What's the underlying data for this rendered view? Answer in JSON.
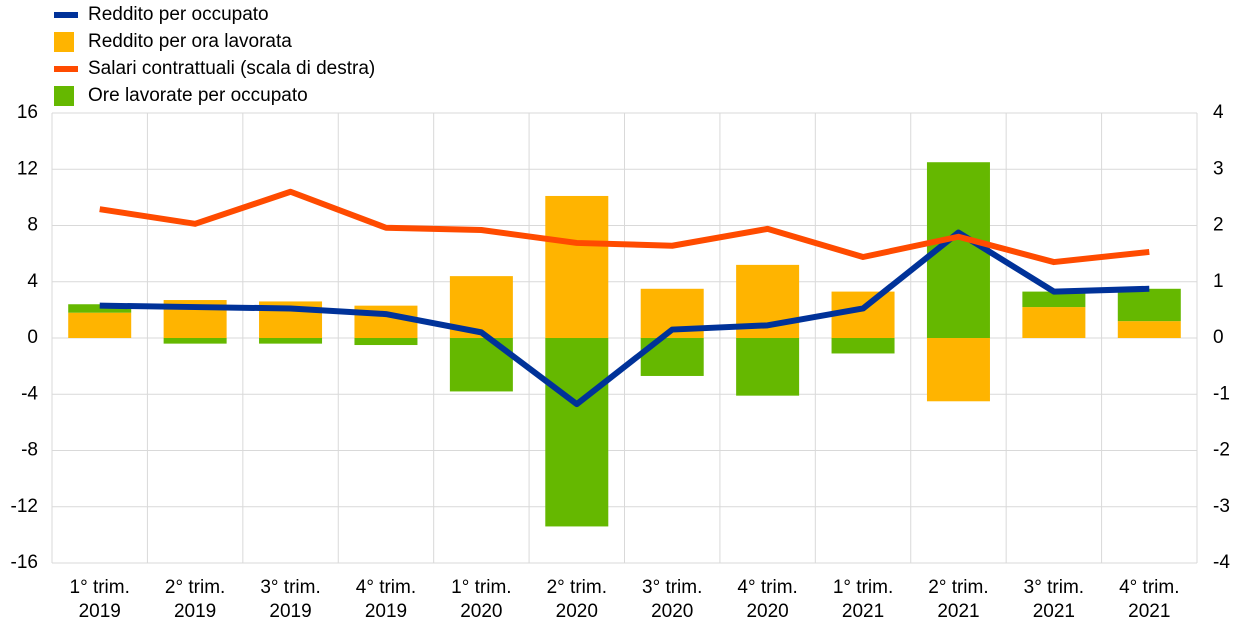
{
  "chart_data": {
    "type": "bar-line",
    "categories": [
      "1° trim. 2019",
      "2° trim. 2019",
      "3° trim. 2019",
      "4° trim. 2019",
      "1° trim. 2020",
      "2° trim. 2020",
      "3° trim. 2020",
      "4° trim. 2020",
      "1° trim. 2021",
      "2° trim. 2021",
      "3° trim. 2021",
      "4° trim. 2021"
    ],
    "series": [
      {
        "name": "Reddito per occupato",
        "kind": "line",
        "color": "#003299",
        "values": [
          2.3,
          2.2,
          2.1,
          1.7,
          0.4,
          -4.7,
          0.6,
          0.9,
          2.1,
          7.5,
          3.3,
          3.5
        ]
      },
      {
        "name": "Reddito per ora lavorata",
        "kind": "bar",
        "color": "#ffb400",
        "values": [
          1.8,
          2.7,
          2.6,
          2.3,
          4.4,
          10.1,
          3.5,
          5.2,
          3.3,
          -4.5,
          2.2,
          1.2
        ]
      },
      {
        "name": "Salari contrattuali (scala di destra)",
        "kind": "line",
        "axis": "y2",
        "color": "#ff4b00",
        "values": [
          2.29,
          2.03,
          2.6,
          1.96,
          1.92,
          1.69,
          1.64,
          1.94,
          1.44,
          1.8,
          1.35,
          1.53
        ]
      },
      {
        "name": "Ore lavorate per occupato",
        "kind": "bar",
        "color": "#65b800",
        "values": [
          0.6,
          -0.4,
          -0.4,
          -0.5,
          -3.8,
          -13.4,
          -2.7,
          -4.1,
          -1.1,
          12.5,
          1.1,
          2.3
        ]
      }
    ],
    "ylim": [
      -16,
      16
    ],
    "yticks": [
      -16,
      -12,
      -8,
      -4,
      0,
      4,
      8,
      12,
      16
    ],
    "y2lim": [
      -4,
      4
    ],
    "y2ticks": [
      -4,
      -3,
      -2,
      -1,
      0,
      1,
      2,
      3,
      4
    ],
    "grid": true,
    "legend": "top-left"
  }
}
